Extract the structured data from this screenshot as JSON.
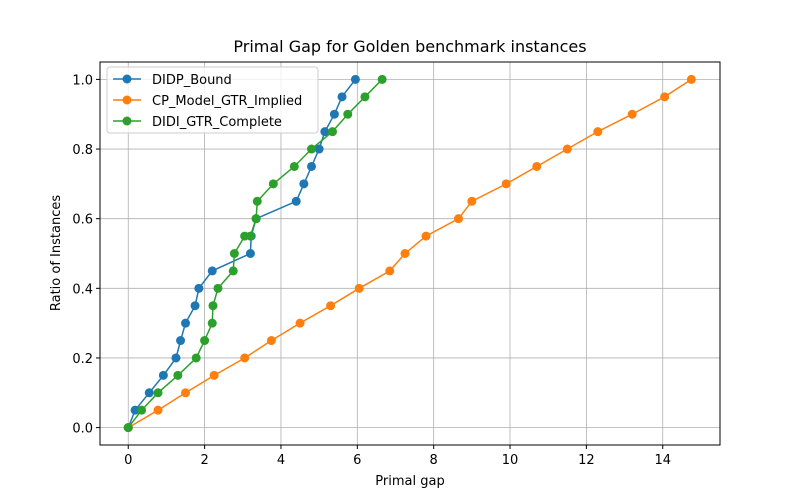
{
  "chart_data": {
    "type": "line",
    "title": "Primal Gap for Golden benchmark instances",
    "xlabel": "Primal gap",
    "ylabel": "Ratio of Instances",
    "xlim": [
      -0.74,
      15.5
    ],
    "ylim": [
      -0.05,
      1.05
    ],
    "xticks": [
      0,
      2,
      4,
      6,
      8,
      10,
      12,
      14
    ],
    "yticks": [
      0.0,
      0.2,
      0.4,
      0.6,
      0.8,
      1.0
    ],
    "xtick_labels": [
      "0",
      "2",
      "4",
      "6",
      "8",
      "10",
      "12",
      "14"
    ],
    "ytick_labels": [
      "0.0",
      "0.2",
      "0.4",
      "0.6",
      "0.8",
      "1.0"
    ],
    "grid": true,
    "legend_position": "top-left",
    "series": [
      {
        "name": "DIDP_Bound",
        "color": "#1f77b4",
        "x": [
          0.0,
          0.18,
          0.55,
          0.92,
          1.25,
          1.37,
          1.5,
          1.75,
          1.85,
          2.2,
          3.2,
          3.22,
          3.35,
          4.4,
          4.6,
          4.8,
          5.0,
          5.15,
          5.4,
          5.6,
          5.95
        ],
        "y": [
          0.0,
          0.05,
          0.1,
          0.15,
          0.2,
          0.25,
          0.3,
          0.35,
          0.4,
          0.45,
          0.5,
          0.55,
          0.6,
          0.65,
          0.7,
          0.75,
          0.8,
          0.85,
          0.9,
          0.95,
          1.0
        ]
      },
      {
        "name": "CP_Model_GTR_Implied",
        "color": "#ff7f0e",
        "x": [
          0.0,
          0.78,
          1.5,
          2.25,
          3.05,
          3.75,
          4.5,
          5.3,
          6.05,
          6.85,
          7.25,
          7.8,
          8.65,
          9.0,
          9.9,
          10.7,
          11.5,
          12.3,
          13.2,
          14.05,
          14.75
        ],
        "y": [
          0.0,
          0.05,
          0.1,
          0.15,
          0.2,
          0.25,
          0.3,
          0.35,
          0.4,
          0.45,
          0.5,
          0.55,
          0.6,
          0.65,
          0.7,
          0.75,
          0.8,
          0.85,
          0.9,
          0.95,
          1.0
        ]
      },
      {
        "name": "DIDI_GTR_Complete",
        "color": "#2ca02c",
        "x": [
          0.0,
          0.35,
          0.78,
          1.3,
          1.78,
          2.0,
          2.2,
          2.22,
          2.35,
          2.75,
          2.78,
          3.05,
          3.2,
          3.35,
          3.38,
          3.8,
          4.35,
          4.8,
          5.35,
          5.75,
          6.2,
          6.65
        ],
        "y": [
          0.0,
          0.05,
          0.1,
          0.15,
          0.2,
          0.25,
          0.3,
          0.35,
          0.4,
          0.45,
          0.5,
          0.55,
          0.55,
          0.6,
          0.65,
          0.7,
          0.75,
          0.8,
          0.85,
          0.9,
          0.95,
          1.0
        ]
      }
    ]
  }
}
